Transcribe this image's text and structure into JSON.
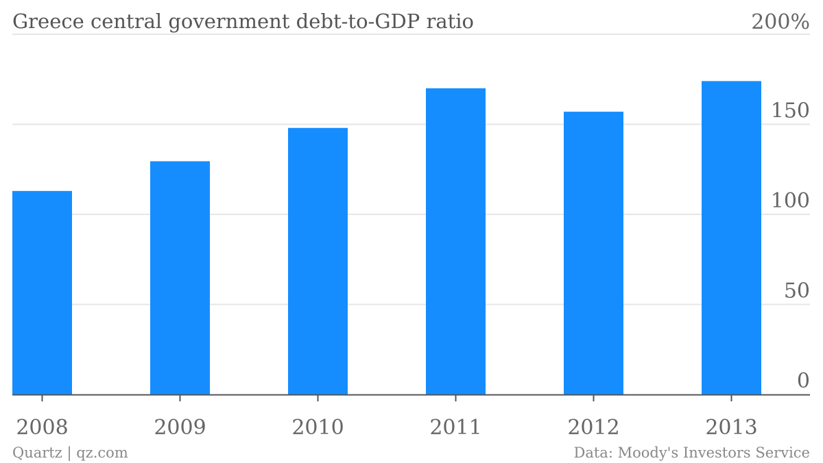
{
  "header": {
    "title": "Greece central government debt-to-GDP ratio",
    "unit_label": "200%"
  },
  "footer": {
    "credit": "Quartz | qz.com",
    "source": "Data: Moody's Investors Service"
  },
  "colors": {
    "bar": "#168dff",
    "grid": "#e6e6e6",
    "baseline": "#555555",
    "text": "#666666"
  },
  "chart_data": {
    "type": "bar",
    "title": "Greece central government debt-to-GDP ratio",
    "categories": [
      "2008",
      "2009",
      "2010",
      "2011",
      "2012",
      "2013"
    ],
    "values": [
      113,
      129.5,
      148,
      170,
      157,
      174
    ],
    "ylim": [
      0,
      200
    ],
    "yticks": [
      0,
      50,
      100,
      150,
      200
    ],
    "ytick_labels": [
      "0",
      "50",
      "100",
      "150",
      "200%"
    ],
    "xlabel": "",
    "ylabel": "",
    "y_axis_position": "right",
    "grid": true,
    "legend": "none"
  }
}
